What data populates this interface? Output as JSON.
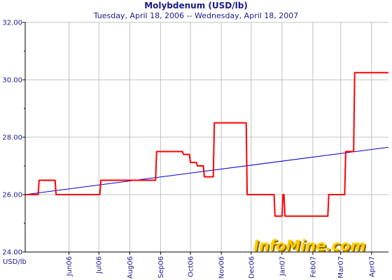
{
  "chart_data": {
    "type": "line",
    "title": "Molybdenum (USD/lb)",
    "subtitle": "Tuesday, April 18, 2006  --  Wednesday, April 18, 2007",
    "ylabel": "USD/lb",
    "xlabel": "",
    "ylim": [
      24.0,
      32.0
    ],
    "yticks": [
      24.0,
      26.0,
      28.0,
      30.0,
      32.0
    ],
    "ytick_labels": [
      "24.00",
      "26.00",
      "28.00",
      "30.00",
      "32.00"
    ],
    "xlim": [
      "2006-04-18",
      "2007-04-18"
    ],
    "xticks": [
      {
        "date": "2006-06-01",
        "label": "Jun06"
      },
      {
        "date": "2006-07-01",
        "label": "Jul06"
      },
      {
        "date": "2006-08-01",
        "label": "Aug06"
      },
      {
        "date": "2006-09-01",
        "label": "Sep06"
      },
      {
        "date": "2006-10-01",
        "label": "Oct06"
      },
      {
        "date": "2006-11-01",
        "label": "Nov06"
      },
      {
        "date": "2006-12-01",
        "label": "Dec06"
      },
      {
        "date": "2007-01-01",
        "label": "Jan07"
      },
      {
        "date": "2007-02-01",
        "label": "Feb07"
      },
      {
        "date": "2007-03-01",
        "label": "Mar07"
      },
      {
        "date": "2007-04-01",
        "label": "Apr07"
      }
    ],
    "grid": true,
    "series": [
      {
        "color": "#ff0000",
        "style": "step",
        "points": [
          [
            "2006-04-18",
            26.0
          ],
          [
            "2006-05-01",
            26.0
          ],
          [
            "2006-05-02",
            26.5
          ],
          [
            "2006-05-18",
            26.5
          ],
          [
            "2006-05-19",
            26.0
          ],
          [
            "2006-07-02",
            26.0
          ],
          [
            "2006-07-03",
            26.5
          ],
          [
            "2006-08-27",
            26.5
          ],
          [
            "2006-08-28",
            27.5
          ],
          [
            "2006-09-23",
            27.5
          ],
          [
            "2006-09-24",
            27.4
          ],
          [
            "2006-09-30",
            27.4
          ],
          [
            "2006-10-01",
            27.12
          ],
          [
            "2006-10-07",
            27.12
          ],
          [
            "2006-10-08",
            27.0
          ],
          [
            "2006-10-14",
            27.0
          ],
          [
            "2006-10-15",
            26.62
          ],
          [
            "2006-10-24",
            26.62
          ],
          [
            "2006-10-25",
            28.5
          ],
          [
            "2006-11-26",
            28.5
          ],
          [
            "2006-11-27",
            26.0
          ],
          [
            "2006-12-24",
            26.0
          ],
          [
            "2006-12-25",
            25.25
          ],
          [
            "2007-01-01",
            25.25
          ],
          [
            "2007-01-02",
            26.0
          ],
          [
            "2007-01-03",
            26.0
          ],
          [
            "2007-01-04",
            25.25
          ],
          [
            "2007-02-16",
            25.25
          ],
          [
            "2007-02-17",
            26.0
          ],
          [
            "2007-03-05",
            26.0
          ],
          [
            "2007-03-06",
            27.5
          ],
          [
            "2007-03-14",
            27.5
          ],
          [
            "2007-03-15",
            30.25
          ],
          [
            "2007-04-18",
            30.25
          ]
        ]
      },
      {
        "color": "#0000cc",
        "style": "trend",
        "points": [
          [
            "2006-04-18",
            26.0
          ],
          [
            "2007-04-18",
            27.65
          ]
        ]
      }
    ]
  },
  "logo": {
    "text_main": "InfoMine",
    "text_suffix": ".com",
    "color_main": "#ffcc00",
    "color_shadow": "#8a6a00"
  },
  "colors": {
    "text": "#1a1a8c",
    "grid": "#c0c0c0",
    "axis": "#000000"
  }
}
